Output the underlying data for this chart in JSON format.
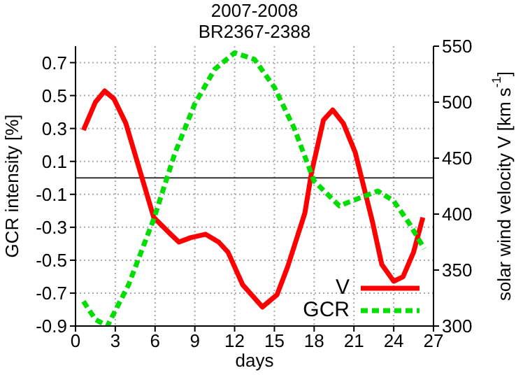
{
  "chart_data": {
    "type": "line",
    "title": "2007-2008",
    "subtitle": "BR2367-2388",
    "xlabel": "days",
    "ylabel": "GCR intensity  [%]",
    "y2label": "solar wind velocity V [km s$^{-1}$]",
    "series": [
      {
        "name": "V",
        "color": "#ff0000",
        "axis": "y2",
        "line_style": "solid",
        "x": [
          0.6,
          1.5,
          2.2,
          2.9,
          3.8,
          5.9,
          7.0,
          7.8,
          8.7,
          9.8,
          10.8,
          11.5,
          12.6,
          14.1,
          15.2,
          16.0,
          17.3,
          17.8,
          18.7,
          19.4,
          20.2,
          21.1,
          22.4,
          23.1,
          24.0,
          24.7,
          25.5,
          26.2
        ],
        "values": [
          475,
          500,
          510,
          503,
          481,
          397,
          384,
          375,
          379,
          382,
          375,
          366,
          337,
          317,
          328,
          353,
          401,
          437,
          484,
          493,
          481,
          455,
          393,
          355,
          340,
          344,
          366,
          397
        ]
      },
      {
        "name": "GCR",
        "color": "#00dd00",
        "line_style": "dashed",
        "x": [
          0.6,
          1.5,
          2.4,
          4.0,
          5.9,
          7.5,
          9.0,
          10.5,
          12.0,
          13.5,
          15.0,
          16.5,
          18.0,
          19.9,
          21.5,
          22.8,
          24.0,
          25.2,
          26.3
        ],
        "values": [
          -0.75,
          -0.86,
          -0.9,
          -0.65,
          -0.25,
          0.15,
          0.45,
          0.66,
          0.76,
          0.72,
          0.55,
          0.3,
          -0.02,
          -0.17,
          -0.12,
          -0.08,
          -0.14,
          -0.28,
          -0.43
        ]
      }
    ],
    "xlim": [
      0,
      27
    ],
    "xticks": [
      0,
      3,
      6,
      9,
      12,
      15,
      18,
      21,
      24,
      27
    ],
    "ylim": [
      -0.9,
      0.8
    ],
    "yticks": [
      -0.9,
      -0.7,
      -0.5,
      -0.3,
      -0.1,
      0.1,
      0.3,
      0.5,
      0.7
    ],
    "y2lim": [
      300,
      550
    ],
    "y2ticks": [
      300,
      350,
      400,
      450,
      500,
      550
    ],
    "ref_lines": [
      {
        "axis": "y",
        "value": 0,
        "color": "#333333"
      }
    ],
    "grid": true,
    "legend": "bottom right",
    "marker": "none"
  }
}
